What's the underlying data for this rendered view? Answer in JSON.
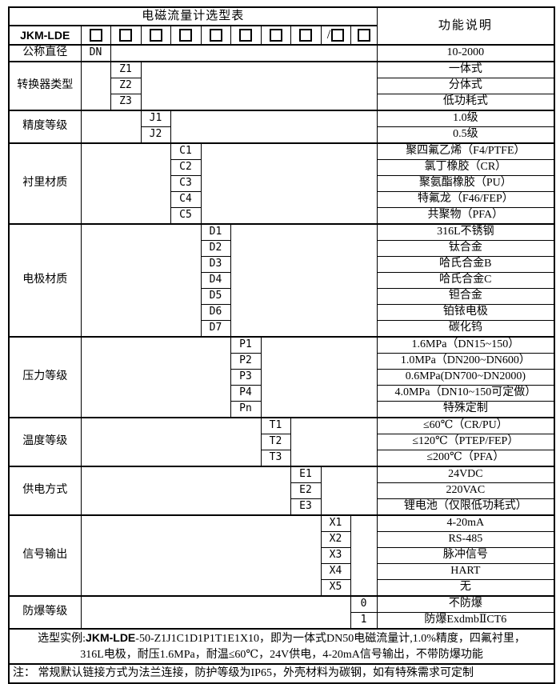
{
  "table": {
    "title": "电磁流量计选型表",
    "function_header": "功能说明",
    "model_code": "JKM-LDE",
    "checkbox_cells": [
      {
        "prefix": ""
      },
      {
        "prefix": ""
      },
      {
        "prefix": ""
      },
      {
        "prefix": ""
      },
      {
        "prefix": ""
      },
      {
        "prefix": ""
      },
      {
        "prefix": ""
      },
      {
        "prefix": ""
      },
      {
        "prefix": "/"
      },
      {
        "prefix": ""
      }
    ],
    "groups": [
      {
        "label": "公称直径",
        "rows": [
          {
            "code": "DN",
            "desc": "10-2000"
          }
        ]
      },
      {
        "label": "转换器类型",
        "rows": [
          {
            "code": "Z1",
            "desc": "一体式"
          },
          {
            "code": "Z2",
            "desc": "分体式"
          },
          {
            "code": "Z3",
            "desc": "低功耗式"
          }
        ]
      },
      {
        "label": "精度等级",
        "rows": [
          {
            "code": "J1",
            "desc": "1.0级"
          },
          {
            "code": "J2",
            "desc": "0.5级"
          }
        ]
      },
      {
        "label": "衬里材质",
        "rows": [
          {
            "code": "C1",
            "desc": "聚四氟乙烯（F4/PTFE）"
          },
          {
            "code": "C2",
            "desc": "氯丁橡胶（CR）"
          },
          {
            "code": "C3",
            "desc": "聚氨酯橡胶（PU）"
          },
          {
            "code": "C4",
            "desc": "特氟龙（F46/FEP）"
          },
          {
            "code": "C5",
            "desc": "共聚物（PFA）"
          }
        ]
      },
      {
        "label": "电极材质",
        "rows": [
          {
            "code": "D1",
            "desc": "316L不锈钢"
          },
          {
            "code": "D2",
            "desc": "钛合金"
          },
          {
            "code": "D3",
            "desc": "哈氏合金B"
          },
          {
            "code": "D4",
            "desc": "哈氏合金C"
          },
          {
            "code": "D5",
            "desc": "钽合金"
          },
          {
            "code": "D6",
            "desc": "铂铱电极"
          },
          {
            "code": "D7",
            "desc": "碳化钨"
          }
        ]
      },
      {
        "label": "压力等级",
        "rows": [
          {
            "code": "P1",
            "desc": "1.6MPa（DN15~150）"
          },
          {
            "code": "P2",
            "desc": "1.0MPa（DN200~DN600）"
          },
          {
            "code": "P3",
            "desc": "0.6MPa(DN700~DN2000)"
          },
          {
            "code": "P4",
            "desc": "4.0MPa（DN10~150可定做）"
          },
          {
            "code": "Pn",
            "desc": "特殊定制"
          }
        ]
      },
      {
        "label": "温度等级",
        "rows": [
          {
            "code": "T1",
            "desc": "≤60℃（CR/PU）"
          },
          {
            "code": "T2",
            "desc": "≤120℃（PTEP/FEP）"
          },
          {
            "code": "T3",
            "desc": "≤200℃（PFA）"
          }
        ]
      },
      {
        "label": "供电方式",
        "rows": [
          {
            "code": "E1",
            "desc": "24VDC"
          },
          {
            "code": "E2",
            "desc": "220VAC"
          },
          {
            "code": "E3",
            "desc": "锂电池（仅限低功耗式）"
          }
        ]
      },
      {
        "label": "信号输出",
        "rows": [
          {
            "code": "X1",
            "desc": "4-20mA"
          },
          {
            "code": "X2",
            "desc": "RS-485"
          },
          {
            "code": "X3",
            "desc": "脉冲信号"
          },
          {
            "code": "X4",
            "desc": "HART"
          },
          {
            "code": "X5",
            "desc": "无"
          }
        ]
      },
      {
        "label": "防爆等级",
        "rows": [
          {
            "code": "0",
            "desc": "不防爆"
          },
          {
            "code": "1",
            "desc": "防爆ExdmbⅡCT6"
          }
        ]
      }
    ],
    "example": {
      "prefix": "选型实例:",
      "model": "JKM-LDE",
      "line1_rest": "-50-Z1J1C1D1P1T1E1X10，即为一体式DN50电磁流量计,1.0%精度，四氟衬里，",
      "line2": "316L电极，耐压1.6MPa，耐温≤60℃，24V供电，4-20mA信号输出，不带防爆功能"
    },
    "note": "注： 常规默认链接方式为法兰连接，防护等级为IP65，外壳材料为碳钢，如有特殊需求可定制"
  }
}
